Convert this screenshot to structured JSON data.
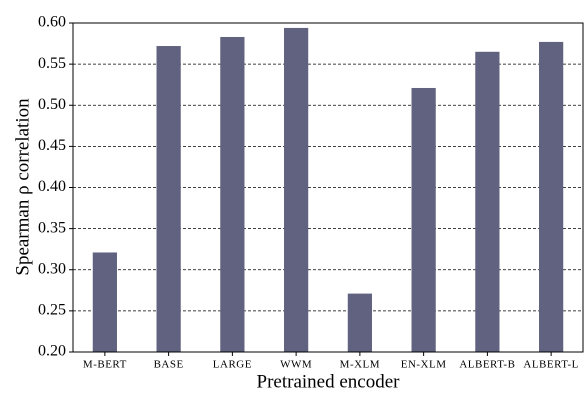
{
  "chart_data": {
    "type": "bar",
    "xlabel": "Pretrained encoder",
    "ylabel": "Spearman ρ correlation",
    "categories": [
      "M-BERT",
      "BASE",
      "LARGE",
      "WWM",
      "M-XLM",
      "EN-XLM",
      "ALBERT-B",
      "ALBERT-L"
    ],
    "values": [
      0.321,
      0.572,
      0.583,
      0.594,
      0.271,
      0.521,
      0.565,
      0.577
    ],
    "color": "#61627f",
    "ylim": [
      0.2,
      0.6
    ],
    "yticks": [
      {
        "value": 0.2,
        "label": "0.20"
      },
      {
        "value": 0.25,
        "label": "0.25"
      },
      {
        "value": 0.3,
        "label": "0.30"
      },
      {
        "value": 0.35,
        "label": "0.35"
      },
      {
        "value": 0.4,
        "label": "0.40"
      },
      {
        "value": 0.45,
        "label": "0.45"
      },
      {
        "value": 0.5,
        "label": "0.50"
      },
      {
        "value": 0.55,
        "label": "0.55"
      },
      {
        "value": 0.6,
        "label": "0.60"
      }
    ],
    "grid": true
  }
}
